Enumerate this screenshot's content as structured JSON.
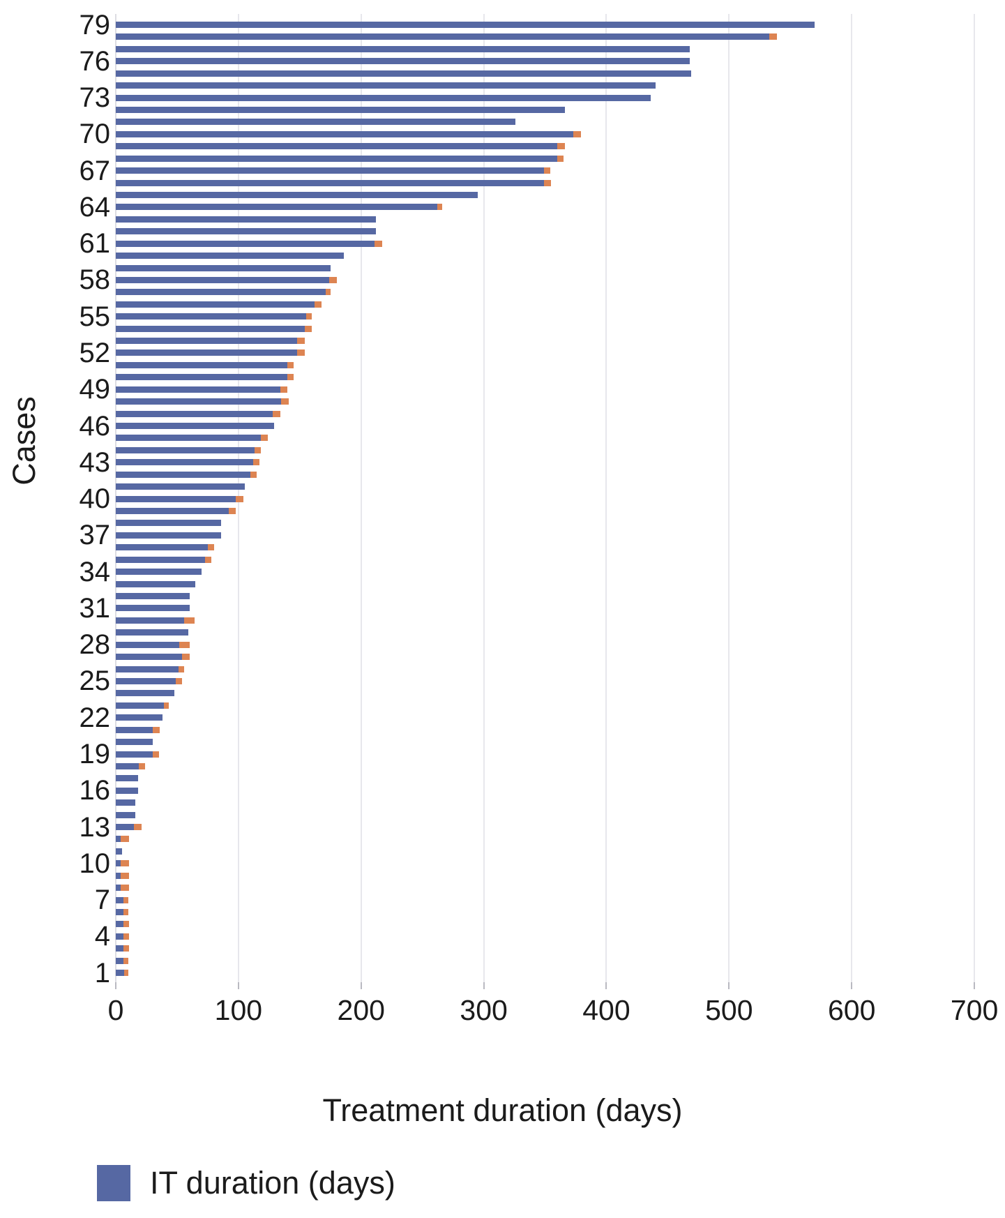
{
  "figure": {
    "x_axis_title": "Treatment duration (days)",
    "y_axis_title": "Cases",
    "legend": {
      "items": [
        {
          "label": "IT duration (days)",
          "color": "#5668a3"
        }
      ]
    }
  },
  "chart_data": {
    "type": "bar",
    "orientation": "horizontal",
    "title": "",
    "xlabel": "Treatment duration (days)",
    "ylabel": "Cases",
    "xlim": [
      0,
      700
    ],
    "xticks": [
      0,
      100,
      200,
      300,
      400,
      500,
      600,
      700
    ],
    "grid": "vertical gridlines every 100 days",
    "y_tick_rule": "every 3rd case labeled: 1,4,7,...,79; cases plotted 79 (top) to 1 (bottom)",
    "legend_position": "bottom-left",
    "series_meta": [
      {
        "name": "IT duration (days)",
        "color": "#5668a3",
        "in_legend": true
      },
      {
        "name": "additional duration (unlabeled orange tip)",
        "color": "#dd8452",
        "in_legend": false
      }
    ],
    "cases": [
      {
        "case": 79,
        "it_days": 570,
        "extra_days": 0
      },
      {
        "case": 78,
        "it_days": 533,
        "extra_days": 6
      },
      {
        "case": 77,
        "it_days": 468,
        "extra_days": 0
      },
      {
        "case": 76,
        "it_days": 468,
        "extra_days": 0
      },
      {
        "case": 75,
        "it_days": 469,
        "extra_days": 0
      },
      {
        "case": 74,
        "it_days": 440,
        "extra_days": 0
      },
      {
        "case": 73,
        "it_days": 436,
        "extra_days": 0
      },
      {
        "case": 72,
        "it_days": 366,
        "extra_days": 0
      },
      {
        "case": 71,
        "it_days": 326,
        "extra_days": 0
      },
      {
        "case": 70,
        "it_days": 373,
        "extra_days": 6
      },
      {
        "case": 69,
        "it_days": 360,
        "extra_days": 6
      },
      {
        "case": 68,
        "it_days": 360,
        "extra_days": 5
      },
      {
        "case": 67,
        "it_days": 349,
        "extra_days": 5
      },
      {
        "case": 66,
        "it_days": 349,
        "extra_days": 6
      },
      {
        "case": 65,
        "it_days": 295,
        "extra_days": 0
      },
      {
        "case": 64,
        "it_days": 262,
        "extra_days": 4
      },
      {
        "case": 63,
        "it_days": 212,
        "extra_days": 0
      },
      {
        "case": 62,
        "it_days": 212,
        "extra_days": 0
      },
      {
        "case": 61,
        "it_days": 211,
        "extra_days": 6
      },
      {
        "case": 60,
        "it_days": 186,
        "extra_days": 0
      },
      {
        "case": 59,
        "it_days": 175,
        "extra_days": 0
      },
      {
        "case": 58,
        "it_days": 174,
        "extra_days": 6
      },
      {
        "case": 57,
        "it_days": 171,
        "extra_days": 4
      },
      {
        "case": 56,
        "it_days": 162,
        "extra_days": 6
      },
      {
        "case": 55,
        "it_days": 155,
        "extra_days": 5
      },
      {
        "case": 54,
        "it_days": 154,
        "extra_days": 6
      },
      {
        "case": 53,
        "it_days": 148,
        "extra_days": 6
      },
      {
        "case": 52,
        "it_days": 148,
        "extra_days": 6
      },
      {
        "case": 51,
        "it_days": 140,
        "extra_days": 5
      },
      {
        "case": 50,
        "it_days": 140,
        "extra_days": 5
      },
      {
        "case": 49,
        "it_days": 134,
        "extra_days": 6
      },
      {
        "case": 48,
        "it_days": 135,
        "extra_days": 6
      },
      {
        "case": 47,
        "it_days": 128,
        "extra_days": 6
      },
      {
        "case": 46,
        "it_days": 129,
        "extra_days": 0
      },
      {
        "case": 45,
        "it_days": 118,
        "extra_days": 6
      },
      {
        "case": 44,
        "it_days": 113,
        "extra_days": 5
      },
      {
        "case": 43,
        "it_days": 112,
        "extra_days": 5
      },
      {
        "case": 42,
        "it_days": 110,
        "extra_days": 5
      },
      {
        "case": 41,
        "it_days": 105,
        "extra_days": 0
      },
      {
        "case": 40,
        "it_days": 98,
        "extra_days": 6
      },
      {
        "case": 39,
        "it_days": 92,
        "extra_days": 6
      },
      {
        "case": 38,
        "it_days": 86,
        "extra_days": 0
      },
      {
        "case": 37,
        "it_days": 86,
        "extra_days": 0
      },
      {
        "case": 36,
        "it_days": 75,
        "extra_days": 5
      },
      {
        "case": 35,
        "it_days": 73,
        "extra_days": 5
      },
      {
        "case": 34,
        "it_days": 70,
        "extra_days": 0
      },
      {
        "case": 33,
        "it_days": 65,
        "extra_days": 0
      },
      {
        "case": 32,
        "it_days": 60,
        "extra_days": 0
      },
      {
        "case": 31,
        "it_days": 60,
        "extra_days": 0
      },
      {
        "case": 30,
        "it_days": 56,
        "extra_days": 8
      },
      {
        "case": 29,
        "it_days": 59,
        "extra_days": 0
      },
      {
        "case": 28,
        "it_days": 52,
        "extra_days": 8
      },
      {
        "case": 27,
        "it_days": 54,
        "extra_days": 6
      },
      {
        "case": 26,
        "it_days": 51,
        "extra_days": 5
      },
      {
        "case": 25,
        "it_days": 49,
        "extra_days": 5
      },
      {
        "case": 24,
        "it_days": 48,
        "extra_days": 0
      },
      {
        "case": 23,
        "it_days": 39,
        "extra_days": 4
      },
      {
        "case": 22,
        "it_days": 38,
        "extra_days": 0
      },
      {
        "case": 21,
        "it_days": 30,
        "extra_days": 6
      },
      {
        "case": 20,
        "it_days": 30,
        "extra_days": 0
      },
      {
        "case": 19,
        "it_days": 30,
        "extra_days": 5
      },
      {
        "case": 18,
        "it_days": 19,
        "extra_days": 5
      },
      {
        "case": 17,
        "it_days": 18,
        "extra_days": 0
      },
      {
        "case": 16,
        "it_days": 18,
        "extra_days": 0
      },
      {
        "case": 15,
        "it_days": 16,
        "extra_days": 0
      },
      {
        "case": 14,
        "it_days": 16,
        "extra_days": 0
      },
      {
        "case": 13,
        "it_days": 15,
        "extra_days": 6
      },
      {
        "case": 12,
        "it_days": 4,
        "extra_days": 7
      },
      {
        "case": 11,
        "it_days": 5,
        "extra_days": 0
      },
      {
        "case": 10,
        "it_days": 4,
        "extra_days": 7
      },
      {
        "case": 9,
        "it_days": 4,
        "extra_days": 7
      },
      {
        "case": 8,
        "it_days": 4,
        "extra_days": 7
      },
      {
        "case": 7,
        "it_days": 6,
        "extra_days": 4
      },
      {
        "case": 6,
        "it_days": 6,
        "extra_days": 4
      },
      {
        "case": 5,
        "it_days": 6,
        "extra_days": 5
      },
      {
        "case": 4,
        "it_days": 6,
        "extra_days": 5
      },
      {
        "case": 3,
        "it_days": 6,
        "extra_days": 5
      },
      {
        "case": 2,
        "it_days": 6,
        "extra_days": 4
      },
      {
        "case": 1,
        "it_days": 7,
        "extra_days": 3
      }
    ]
  }
}
